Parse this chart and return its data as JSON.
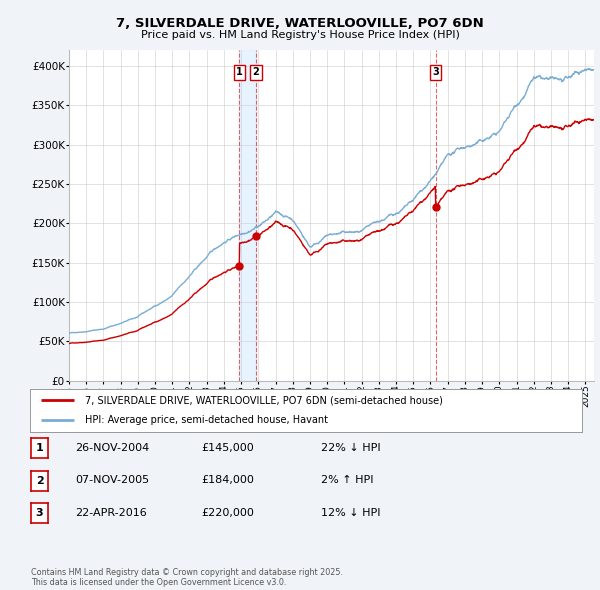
{
  "title": "7, SILVERDALE DRIVE, WATERLOOVILLE, PO7 6DN",
  "subtitle": "Price paid vs. HM Land Registry's House Price Index (HPI)",
  "red_line_label": "7, SILVERDALE DRIVE, WATERLOOVILLE, PO7 6DN (semi-detached house)",
  "blue_line_label": "HPI: Average price, semi-detached house, Havant",
  "transactions": [
    {
      "num": 1,
      "date": "26-NOV-2004",
      "price": 145000,
      "pct": "22%",
      "dir": "↓",
      "year_x": 2004.9
    },
    {
      "num": 2,
      "date": "07-NOV-2005",
      "price": 184000,
      "pct": "2%",
      "dir": "↑",
      "year_x": 2005.85
    },
    {
      "num": 3,
      "date": "22-APR-2016",
      "price": 220000,
      "pct": "12%",
      "dir": "↓",
      "year_x": 2016.3
    }
  ],
  "vline_x": [
    2004.9,
    2005.85,
    2016.3
  ],
  "footer": "Contains HM Land Registry data © Crown copyright and database right 2025.\nThis data is licensed under the Open Government Licence v3.0.",
  "ylim": [
    0,
    420000
  ],
  "xlim": [
    1995,
    2025.5
  ],
  "yticks": [
    0,
    50000,
    100000,
    150000,
    200000,
    250000,
    300000,
    350000,
    400000
  ],
  "ytick_labels": [
    "£0",
    "£50K",
    "£100K",
    "£150K",
    "£200K",
    "£250K",
    "£300K",
    "£350K",
    "£400K"
  ],
  "bg_color": "#f0f4f8",
  "plot_bg_color": "#ffffff",
  "red_color": "#cc0000",
  "blue_color": "#7aadd4",
  "grid_color": "#cccccc",
  "shade_color": "#ddeeff"
}
